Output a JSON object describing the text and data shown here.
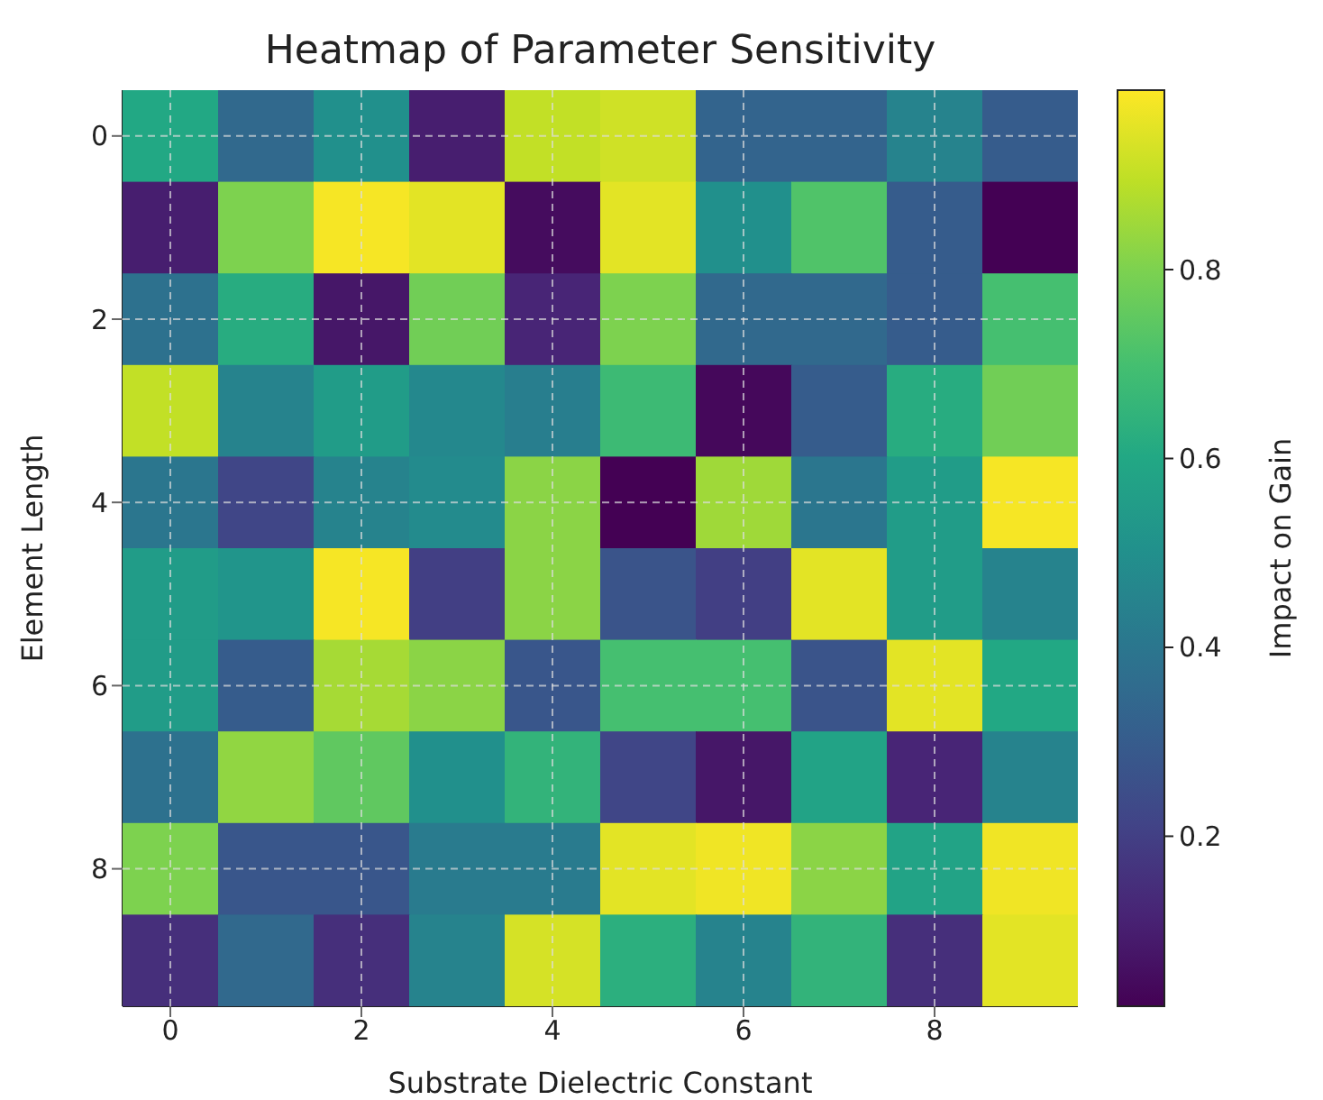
{
  "chart_data": {
    "type": "heatmap",
    "title": "Heatmap of Parameter Sensitivity",
    "xlabel": "Substrate Dielectric Constant",
    "ylabel": "Element Length",
    "clabel": "Impact on Gain",
    "categories": [
      "0",
      null,
      "2",
      null,
      "4",
      null,
      "6",
      null,
      "8",
      null
    ],
    "y_categories": [
      "0",
      null,
      "2",
      null,
      "4",
      null,
      "6",
      null,
      "8",
      null
    ],
    "cells": [
      [
        0.6,
        0.35,
        0.5,
        0.1,
        0.9,
        0.92,
        0.33,
        0.33,
        0.45,
        0.3
      ],
      [
        0.1,
        0.8,
        0.98,
        0.95,
        0.05,
        0.95,
        0.5,
        0.72,
        0.3,
        0.02
      ],
      [
        0.38,
        0.62,
        0.08,
        0.78,
        0.12,
        0.8,
        0.35,
        0.35,
        0.3,
        0.7
      ],
      [
        0.9,
        0.45,
        0.55,
        0.47,
        0.43,
        0.68,
        0.04,
        0.3,
        0.62,
        0.78
      ],
      [
        0.4,
        0.22,
        0.45,
        0.48,
        0.82,
        0.02,
        0.85,
        0.4,
        0.55,
        0.98
      ],
      [
        0.55,
        0.52,
        0.98,
        0.2,
        0.82,
        0.27,
        0.2,
        0.95,
        0.55,
        0.45
      ],
      [
        0.55,
        0.3,
        0.86,
        0.82,
        0.28,
        0.7,
        0.7,
        0.27,
        0.95,
        0.6
      ],
      [
        0.38,
        0.83,
        0.75,
        0.5,
        0.65,
        0.22,
        0.08,
        0.58,
        0.12,
        0.45
      ],
      [
        0.8,
        0.28,
        0.28,
        0.42,
        0.42,
        0.95,
        0.97,
        0.82,
        0.58,
        0.97
      ],
      [
        0.15,
        0.35,
        0.15,
        0.45,
        0.93,
        0.63,
        0.45,
        0.65,
        0.15,
        0.95
      ]
    ],
    "clim": [
      0.02,
      0.99
    ],
    "cticks": [
      0.2,
      0.4,
      0.6,
      0.8
    ],
    "grid": true
  }
}
